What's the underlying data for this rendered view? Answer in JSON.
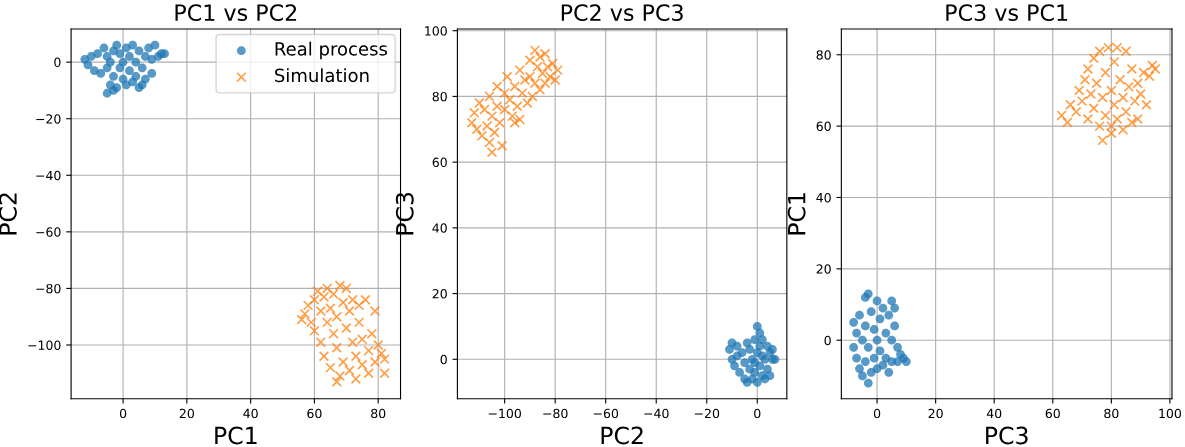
{
  "chart_data": [
    {
      "type": "scatter",
      "title": "PC1 vs PC2",
      "xlabel": "PC1",
      "ylabel": "PC2",
      "xlim": [
        -16.3,
        87
      ],
      "ylim": [
        -119,
        11.7
      ],
      "xticks": [
        0,
        20,
        40,
        60,
        80
      ],
      "yticks": [
        {
          "value": -100,
          "label": "−100"
        },
        {
          "value": -80,
          "label": "−80"
        },
        {
          "value": -60,
          "label": "−60"
        },
        {
          "value": -40,
          "label": "−40"
        },
        {
          "value": -20,
          "label": "−20"
        },
        0
      ],
      "grid": true,
      "legend": "top right",
      "series": [
        {
          "name": "Real process",
          "color": "#1f77b4",
          "marker": "circle",
          "x": [
            -12,
            -11,
            -10,
            -9,
            -8,
            -7,
            -6,
            -5,
            -5,
            -4,
            -4,
            -3,
            -3,
            -2,
            -2,
            -1,
            -1,
            0,
            0,
            1,
            1,
            2,
            2,
            3,
            3,
            4,
            4,
            5,
            5,
            6,
            7,
            7,
            8,
            9,
            9,
            10,
            11,
            12,
            13,
            -5,
            -3,
            6
          ],
          "values": [
            1,
            -1,
            2,
            -3,
            3,
            -4,
            5,
            -2,
            2,
            -8,
            0,
            4,
            -5,
            6,
            -9,
            -2,
            3,
            0,
            -6,
            5,
            -8,
            2,
            -3,
            -7,
            6,
            0,
            -5,
            4,
            -9,
            -2,
            2,
            -6,
            5,
            -4,
            1,
            6,
            2,
            3,
            3,
            -11,
            -10,
            -8
          ]
        },
        {
          "name": "Simulation",
          "color": "#ff7f0e",
          "marker": "cross",
          "x": [
            56,
            57,
            58,
            59,
            60,
            60,
            61,
            62,
            62,
            63,
            63,
            64,
            64,
            65,
            65,
            66,
            66,
            67,
            67,
            68,
            68,
            69,
            69,
            70,
            70,
            71,
            71,
            72,
            72,
            73,
            73,
            74,
            74,
            75,
            75,
            76,
            77,
            77,
            78,
            79,
            80,
            81,
            82,
            82,
            67,
            79
          ],
          "values": [
            -91,
            -89,
            -86,
            -92,
            -84,
            -95,
            -81,
            -88,
            -99,
            -83,
            -104,
            -92,
            -80,
            -87,
            -108,
            -96,
            -82,
            -101,
            -90,
            -79,
            -111,
            -85,
            -106,
            -94,
            -80,
            -109,
            -88,
            -99,
            -84,
            -104,
            -112,
            -92,
            -86,
            -107,
            -98,
            -84,
            -102,
            -110,
            -96,
            -106,
            -100,
            -103,
            -105,
            -110,
            -113,
            -88
          ]
        }
      ]
    },
    {
      "type": "scatter",
      "title": "PC2 vs PC3",
      "xlabel": "PC2",
      "ylabel": "PC3",
      "xlim": [
        -118.7,
        11.7
      ],
      "ylim": [
        -12,
        100.5
      ],
      "xticks": [
        {
          "value": -100,
          "label": "−100"
        },
        {
          "value": -80,
          "label": "−80"
        },
        {
          "value": -60,
          "label": "−60"
        },
        {
          "value": -40,
          "label": "−40"
        },
        {
          "value": -20,
          "label": "−20"
        },
        0
      ],
      "yticks": [
        0,
        20,
        40,
        60,
        80,
        100
      ],
      "grid": true,
      "series": [
        {
          "color": "#1f77b4",
          "marker": "circle",
          "x": [
            -11,
            -10,
            -10,
            -9,
            -8,
            -8,
            -7,
            -6,
            -5,
            -5,
            -4,
            -4,
            -3,
            -3,
            -2,
            -2,
            -1,
            -1,
            0,
            0,
            0,
            1,
            1,
            1,
            2,
            2,
            3,
            3,
            4,
            4,
            5,
            5,
            6,
            6,
            7,
            -1,
            2
          ],
          "values": [
            3,
            0,
            5,
            -2,
            4,
            1,
            -4,
            2,
            -6,
            -1,
            5,
            -7,
            -3,
            3,
            0,
            -6,
            6,
            -4,
            10,
            2,
            -7,
            8,
            -2,
            4,
            -5,
            6,
            0,
            -6,
            4,
            -3,
            2,
            -5,
            0,
            3,
            0,
            -1,
            1
          ]
        },
        {
          "color": "#ff7f0e",
          "marker": "cross",
          "x": [
            -113,
            -112,
            -111,
            -110,
            -109,
            -108,
            -107,
            -106,
            -106,
            -105,
            -105,
            -104,
            -103,
            -103,
            -102,
            -101,
            -100,
            -100,
            -99,
            -98,
            -97,
            -96,
            -95,
            -94,
            -94,
            -93,
            -92,
            -91,
            -90,
            -90,
            -89,
            -88,
            -88,
            -87,
            -86,
            -86,
            -85,
            -84,
            -84,
            -83,
            -82,
            -81,
            -80,
            -79,
            -96
          ],
          "values": [
            72,
            75,
            70,
            78,
            68,
            76,
            71,
            80,
            66,
            63,
            74,
            69,
            83,
            77,
            72,
            65,
            81,
            76,
            86,
            79,
            74,
            83,
            77,
            88,
            73,
            81,
            85,
            78,
            91,
            86,
            80,
            94,
            84,
            89,
            82,
            92,
            87,
            93,
            84,
            89,
            86,
            90,
            85,
            88,
            72
          ]
        }
      ]
    },
    {
      "type": "scatter",
      "title": "PC3 vs PC1",
      "xlabel": "PC3",
      "ylabel": "PC1",
      "xlim": [
        -12.2,
        100.7
      ],
      "ylim": [
        -16.4,
        87.2
      ],
      "xticks": [
        0,
        20,
        40,
        60,
        80,
        100
      ],
      "yticks": [
        0,
        20,
        40,
        60,
        80
      ],
      "grid": true,
      "series": [
        {
          "color": "#1f77b4",
          "marker": "circle",
          "x": [
            -8,
            -8,
            -7,
            -7,
            -6,
            -6,
            -5,
            -5,
            -4,
            -4,
            -4,
            -3,
            -3,
            -3,
            -2,
            -2,
            -1,
            -1,
            0,
            0,
            0,
            1,
            1,
            2,
            2,
            3,
            3,
            4,
            4,
            5,
            5,
            5,
            6,
            6,
            7,
            7,
            8,
            9,
            10
          ],
          "values": [
            -2,
            5,
            -5,
            2,
            -8,
            7,
            0,
            -10,
            12,
            4,
            -6,
            13,
            -12,
            -2,
            8,
            -9,
            3,
            -5,
            11,
            0,
            -8,
            6,
            -3,
            9,
            -7,
            2,
            -5,
            7,
            -9,
            11,
            0,
            -6,
            9,
            4,
            -2,
            -6,
            -4,
            -5,
            -6
          ]
        },
        {
          "color": "#ff7f0e",
          "marker": "cross",
          "x": [
            63,
            65,
            66,
            68,
            69,
            70,
            71,
            72,
            72,
            73,
            74,
            74,
            75,
            76,
            76,
            77,
            77,
            78,
            78,
            79,
            80,
            80,
            81,
            81,
            82,
            82,
            83,
            84,
            84,
            85,
            85,
            86,
            87,
            87,
            88,
            89,
            89,
            90,
            91,
            92,
            93,
            94,
            95,
            80
          ],
          "values": [
            63,
            61,
            66,
            64,
            70,
            67,
            73,
            62,
            76,
            69,
            79,
            65,
            72,
            60,
            81,
            56,
            68,
            75,
            63,
            82,
            70,
            58,
            66,
            78,
            82,
            62,
            73,
            68,
            59,
            81,
            64,
            71,
            76,
            61,
            67,
            72,
            62,
            69,
            75,
            66,
            74,
            77,
            76,
            60
          ]
        }
      ]
    }
  ]
}
